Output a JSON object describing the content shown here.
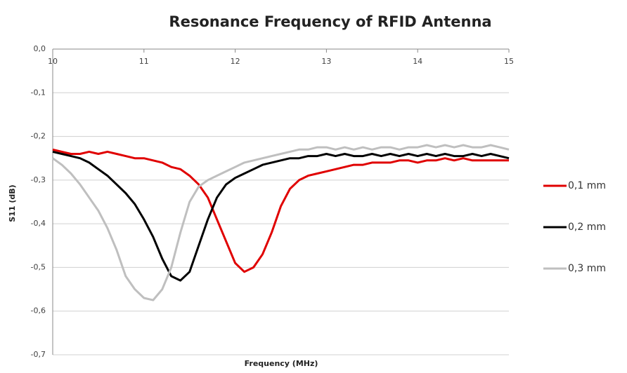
{
  "chart_data": {
    "type": "line",
    "title": "Resonance Frequency of RFID Antenna",
    "x_label": "Frequency (MHz)",
    "y_label": "S11 (dB)",
    "x": [
      10.0,
      10.1,
      10.2,
      10.3,
      10.4,
      10.5,
      10.6,
      10.7,
      10.8,
      10.9,
      11.0,
      11.1,
      11.2,
      11.3,
      11.4,
      11.5,
      11.6,
      11.7,
      11.8,
      11.9,
      12.0,
      12.1,
      12.2,
      12.3,
      12.4,
      12.5,
      12.6,
      12.7,
      12.8,
      12.9,
      13.0,
      13.1,
      13.2,
      13.3,
      13.4,
      13.5,
      13.6,
      13.7,
      13.8,
      13.9,
      14.0,
      14.1,
      14.2,
      14.3,
      14.4,
      14.5,
      14.6,
      14.7,
      14.8,
      14.9,
      15.0
    ],
    "series": [
      {
        "name": "0,1 mm",
        "color": "#e00000",
        "values": [
          -0.23,
          -0.235,
          -0.24,
          -0.24,
          -0.235,
          -0.24,
          -0.235,
          -0.24,
          -0.245,
          -0.25,
          -0.25,
          -0.255,
          -0.26,
          -0.27,
          -0.275,
          -0.29,
          -0.31,
          -0.34,
          -0.39,
          -0.44,
          -0.49,
          -0.51,
          -0.5,
          -0.47,
          -0.42,
          -0.36,
          -0.32,
          -0.3,
          -0.29,
          -0.285,
          -0.28,
          -0.275,
          -0.27,
          -0.265,
          -0.265,
          -0.26,
          -0.26,
          -0.26,
          -0.255,
          -0.255,
          -0.26,
          -0.255,
          -0.255,
          -0.25,
          -0.255,
          -0.25,
          -0.255,
          -0.255,
          -0.255,
          -0.255,
          -0.255
        ]
      },
      {
        "name": "0,2 mm",
        "color": "#000000",
        "values": [
          -0.235,
          -0.24,
          -0.245,
          -0.25,
          -0.26,
          -0.275,
          -0.29,
          -0.31,
          -0.33,
          -0.355,
          -0.39,
          -0.43,
          -0.48,
          -0.52,
          -0.53,
          -0.51,
          -0.45,
          -0.39,
          -0.34,
          -0.31,
          -0.295,
          -0.285,
          -0.275,
          -0.265,
          -0.26,
          -0.255,
          -0.25,
          -0.25,
          -0.245,
          -0.245,
          -0.24,
          -0.245,
          -0.24,
          -0.245,
          -0.245,
          -0.24,
          -0.245,
          -0.24,
          -0.245,
          -0.24,
          -0.245,
          -0.24,
          -0.245,
          -0.24,
          -0.245,
          -0.245,
          -0.24,
          -0.245,
          -0.24,
          -0.245,
          -0.25
        ]
      },
      {
        "name": "0,3 mm",
        "color": "#bfbfbf",
        "values": [
          -0.25,
          -0.265,
          -0.285,
          -0.31,
          -0.34,
          -0.37,
          -0.41,
          -0.46,
          -0.52,
          -0.55,
          -0.57,
          -0.575,
          -0.55,
          -0.5,
          -0.42,
          -0.35,
          -0.315,
          -0.3,
          -0.29,
          -0.28,
          -0.27,
          -0.26,
          -0.255,
          -0.25,
          -0.245,
          -0.24,
          -0.235,
          -0.23,
          -0.23,
          -0.225,
          -0.225,
          -0.23,
          -0.225,
          -0.23,
          -0.225,
          -0.23,
          -0.225,
          -0.225,
          -0.23,
          -0.225,
          -0.225,
          -0.22,
          -0.225,
          -0.22,
          -0.225,
          -0.22,
          -0.225,
          -0.225,
          -0.22,
          -0.225,
          -0.23
        ]
      }
    ],
    "xlim": [
      10,
      15
    ],
    "xticks": [
      10,
      11,
      12,
      13,
      14,
      15
    ],
    "ylim": [
      -0.7,
      0
    ],
    "yticks": [
      {
        "value": 0,
        "label": "0,0"
      },
      {
        "value": -0.1,
        "label": "-0,1"
      },
      {
        "value": -0.2,
        "label": "-0,2"
      },
      {
        "value": -0.3,
        "label": "-0,3"
      },
      {
        "value": -0.4,
        "label": "-0,4"
      },
      {
        "value": -0.5,
        "label": "-0,5"
      },
      {
        "value": -0.6,
        "label": "-0,6"
      },
      {
        "value": -0.7,
        "label": "-0,7"
      }
    ],
    "grid": true,
    "legend": "right"
  }
}
